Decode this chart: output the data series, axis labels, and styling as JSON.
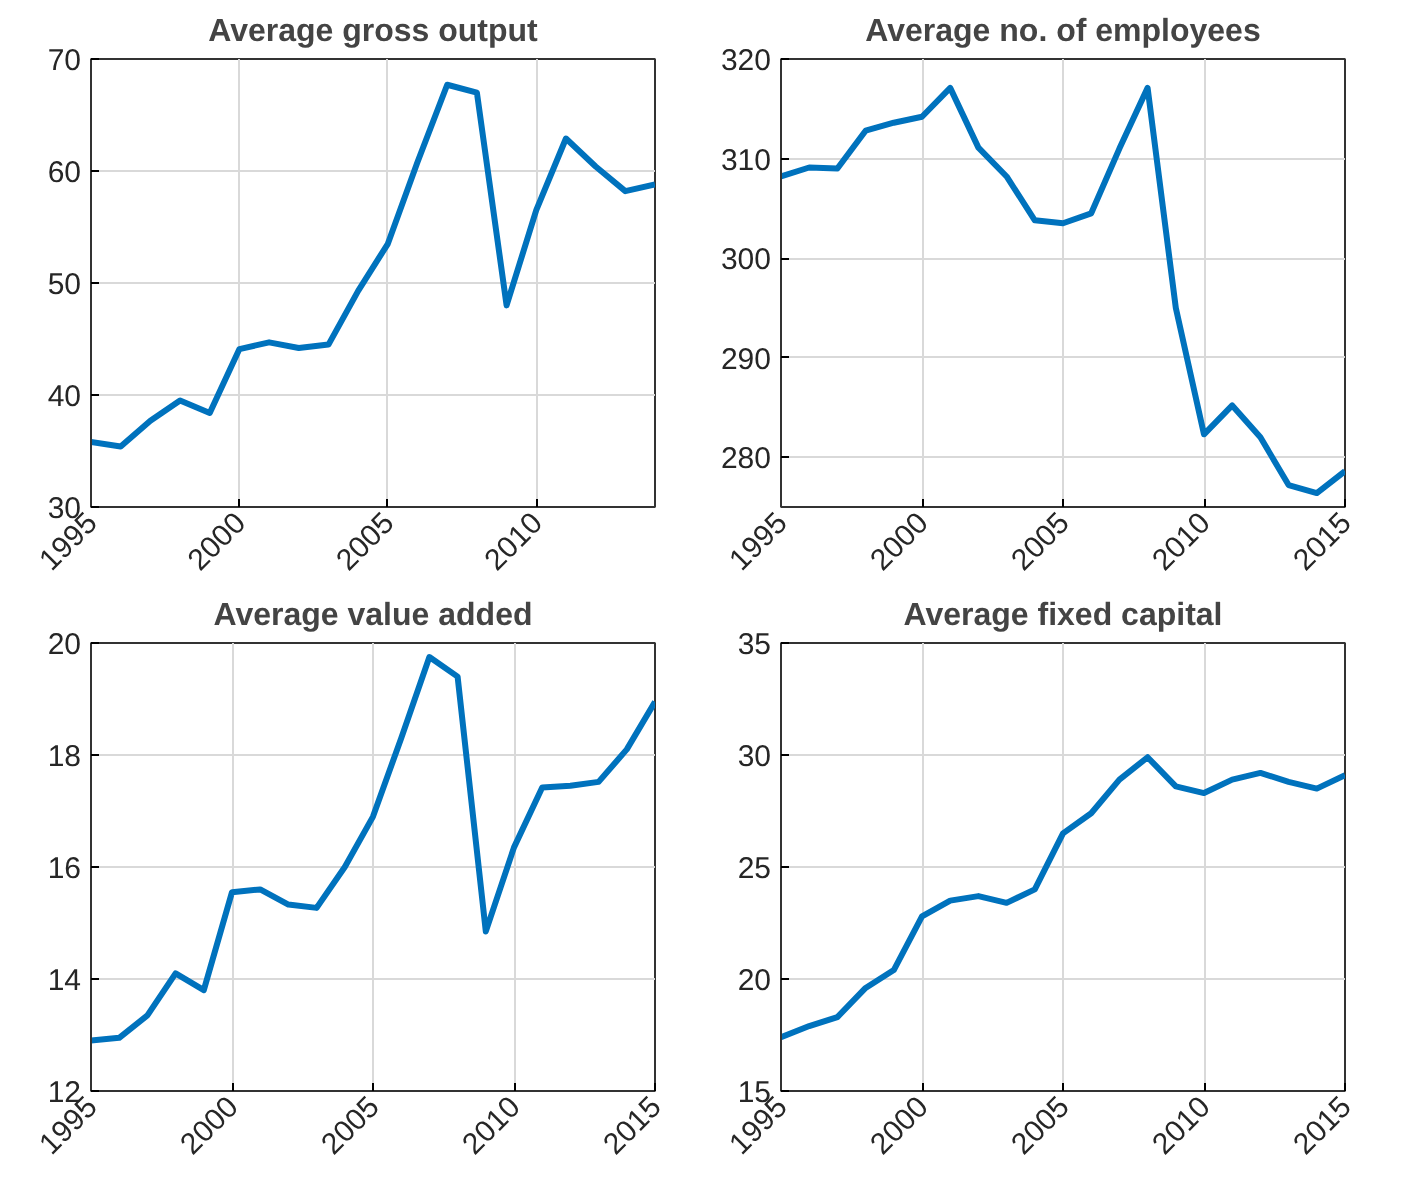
{
  "chart_data": [
    {
      "type": "line",
      "title": "Average gross output",
      "x": [
        1995,
        1996,
        1997,
        1998,
        1999,
        2000,
        2001,
        2002,
        2003,
        2004,
        2005,
        2006,
        2007,
        2008,
        2009,
        2010,
        2011,
        2012,
        2013,
        2014
      ],
      "series": [
        {
          "color": "#0072bd",
          "values": [
            35.8,
            35.4,
            37.7,
            39.5,
            38.4,
            44.1,
            44.7,
            44.2,
            44.5,
            49.3,
            53.5,
            60.8,
            67.7,
            67.0,
            48.0,
            56.5,
            62.9,
            60.4,
            58.2,
            58.8
          ]
        }
      ],
      "xlim": [
        1995,
        2014
      ],
      "xticks": [
        1995,
        2000,
        2005,
        2010
      ],
      "ylim": [
        30,
        70
      ],
      "yticks": [
        30,
        40,
        50,
        60,
        70
      ],
      "grid": true,
      "line_style": "solid"
    },
    {
      "type": "line",
      "title": "Average no. of employees",
      "x": [
        1995,
        1996,
        1997,
        1998,
        1999,
        2000,
        2001,
        2002,
        2003,
        2004,
        2005,
        2006,
        2007,
        2008,
        2009,
        2010,
        2011,
        2012,
        2013,
        2014,
        2015
      ],
      "series": [
        {
          "color": "#0072bd",
          "values": [
            308.2,
            309.1,
            309.0,
            312.8,
            313.6,
            314.2,
            317.1,
            311.1,
            308.2,
            303.8,
            303.5,
            304.5,
            311.0,
            317.1,
            295.0,
            282.3,
            285.2,
            282.0,
            277.2,
            276.4,
            278.6
          ]
        }
      ],
      "xlim": [
        1995,
        2015
      ],
      "xticks": [
        1995,
        2000,
        2005,
        2010,
        2015
      ],
      "ylim": [
        275,
        320
      ],
      "yticks": [
        280,
        290,
        300,
        310,
        320
      ],
      "grid": true,
      "line_style": "solid"
    },
    {
      "type": "line",
      "title": "Average value added",
      "x": [
        1995,
        1996,
        1997,
        1998,
        1999,
        2000,
        2001,
        2002,
        2003,
        2004,
        2005,
        2006,
        2007,
        2008,
        2009,
        2010,
        2011,
        2012,
        2013,
        2014,
        2015
      ],
      "series": [
        {
          "color": "#0072bd",
          "values": [
            12.9,
            12.95,
            13.35,
            14.1,
            13.8,
            15.55,
            15.6,
            15.33,
            15.27,
            16.0,
            16.9,
            18.3,
            19.75,
            19.4,
            14.85,
            16.35,
            17.42,
            17.45,
            17.52,
            18.1,
            18.95
          ]
        }
      ],
      "xlim": [
        1995,
        2015
      ],
      "xticks": [
        1995,
        2000,
        2005,
        2010,
        2015
      ],
      "ylim": [
        12,
        20
      ],
      "yticks": [
        12,
        14,
        16,
        18,
        20
      ],
      "grid": true,
      "line_style": "solid"
    },
    {
      "type": "line",
      "title": "Average fixed capital",
      "x": [
        1995,
        1996,
        1997,
        1998,
        1999,
        2000,
        2001,
        2002,
        2003,
        2004,
        2005,
        2006,
        2007,
        2008,
        2009,
        2010,
        2011,
        2012,
        2013,
        2014,
        2015
      ],
      "series": [
        {
          "color": "#0072bd",
          "values": [
            17.4,
            17.9,
            18.3,
            19.6,
            20.4,
            22.8,
            23.5,
            23.7,
            23.4,
            24.0,
            26.5,
            27.4,
            28.9,
            29.9,
            28.6,
            28.3,
            28.9,
            29.2,
            28.8,
            28.5,
            29.1
          ]
        }
      ],
      "xlim": [
        1995,
        2015
      ],
      "xticks": [
        1995,
        2000,
        2005,
        2010,
        2015
      ],
      "ylim": [
        15,
        35
      ],
      "yticks": [
        15,
        20,
        25,
        30,
        35
      ],
      "grid": true,
      "line_style": "solid"
    }
  ]
}
